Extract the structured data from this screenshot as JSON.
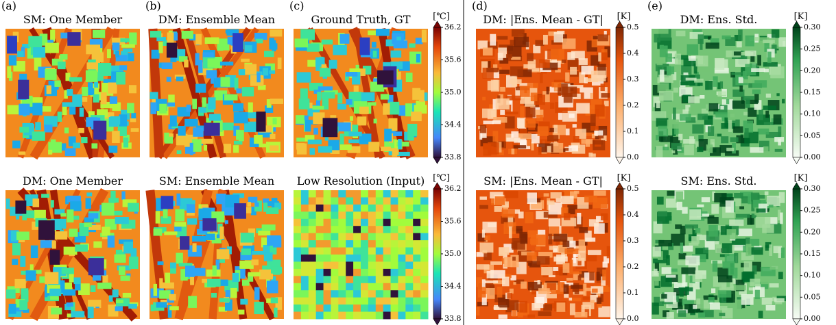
{
  "panel_labels": [
    "(a)",
    "(b)",
    "(c)",
    "(d)",
    "(e)"
  ],
  "titles": {
    "top": [
      "SM: One Member",
      "DM: Ensemble Mean",
      "Ground Truth, GT",
      "DM: |Ens. Mean - GT|",
      "DM: Ens. Std."
    ],
    "bottom": [
      "DM: One Member",
      "SM: Ensemble Mean",
      "Low Resolution (Input)",
      "SM: |Ens. Mean - GT|",
      "SM: Ens. Std."
    ]
  },
  "colorbars": [
    {
      "unit": "[℃]",
      "lim": [
        33.8,
        36.2
      ],
      "ticks": [
        33.8,
        34.4,
        {
          "value": 35,
          "label": "35.0"
        },
        35.6,
        36.2
      ]
    },
    {
      "unit": "[K]",
      "lim": [
        0,
        0.5
      ],
      "ticks": [
        {
          "value": 0,
          "label": "0.0"
        },
        0.1,
        0.2,
        0.3,
        0.4,
        0.5
      ]
    },
    {
      "unit": "[K]",
      "lim": [
        0,
        0.3
      ],
      "ticks": [
        {
          "value": 0,
          "label": "0.00"
        },
        0.05,
        {
          "value": 0.1,
          "label": "0.10"
        },
        0.15,
        {
          "value": 0.2,
          "label": "0.20"
        },
        0.25,
        {
          "value": 0.3,
          "label": "0.30"
        }
      ]
    }
  ]
}
